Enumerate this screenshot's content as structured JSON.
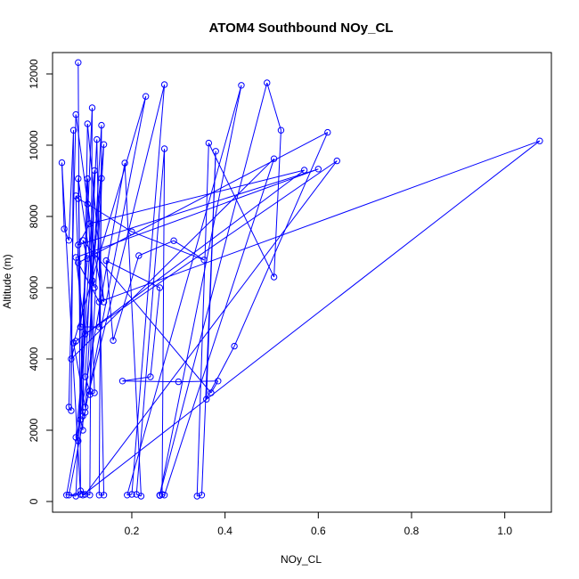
{
  "chart_data": {
    "type": "scatter",
    "title": "ATOM4 Southbound NOy_CL",
    "xlabel": "NOy_CL",
    "ylabel": "Altitude (m)",
    "xlim": [
      0.03,
      1.1
    ],
    "ylim": [
      -300,
      12600
    ],
    "xticks": [
      0.2,
      0.4,
      0.6,
      0.8,
      1.0
    ],
    "xtick_labels": [
      "0.2",
      "0.4",
      "0.6",
      "0.8",
      "1.0"
    ],
    "yticks": [
      0,
      2000,
      4000,
      6000,
      8000,
      10000,
      12000
    ],
    "ytick_labels": [
      "0",
      "2000",
      "4000",
      "6000",
      "8000",
      "10000",
      "12000"
    ],
    "grid": false,
    "legend": "none",
    "color": "#0000ff",
    "series": [
      {
        "style": "points-and-lines",
        "points": [
          [
            0.085,
            12320
          ],
          [
            0.09,
            300
          ],
          [
            0.11,
            180
          ],
          [
            0.115,
            11050
          ],
          [
            0.08,
            150
          ],
          [
            0.065,
            180
          ],
          [
            0.23,
            11370
          ],
          [
            0.075,
            4450
          ],
          [
            0.1,
            2650
          ],
          [
            0.27,
            11700
          ],
          [
            0.2,
            200
          ],
          [
            0.19,
            180
          ],
          [
            0.435,
            11680
          ],
          [
            0.26,
            170
          ],
          [
            0.26,
            180
          ],
          [
            0.49,
            11750
          ],
          [
            0.52,
            10420
          ],
          [
            0.505,
            6300
          ],
          [
            0.365,
            10060
          ],
          [
            0.34,
            150
          ],
          [
            0.35,
            180
          ],
          [
            0.38,
            9830
          ],
          [
            0.36,
            2870
          ],
          [
            0.42,
            4360
          ],
          [
            0.62,
            10360
          ],
          [
            0.085,
            6700
          ],
          [
            0.13,
            5600
          ],
          [
            1.075,
            10120
          ],
          [
            0.095,
            180
          ],
          [
            0.1,
            200
          ],
          [
            0.64,
            9560
          ],
          [
            0.1,
            4700
          ],
          [
            0.08,
            6850
          ],
          [
            0.6,
            9330
          ],
          [
            0.085,
            7200
          ],
          [
            0.11,
            7800
          ],
          [
            0.57,
            9300
          ],
          [
            0.08,
            4500
          ],
          [
            0.07,
            4000
          ],
          [
            0.505,
            9620
          ],
          [
            0.27,
            180
          ],
          [
            0.265,
            200
          ],
          [
            0.27,
            9900
          ],
          [
            0.21,
            200
          ],
          [
            0.22,
            150
          ],
          [
            0.185,
            9500
          ],
          [
            0.06,
            180
          ],
          [
            0.09,
            200
          ],
          [
            0.05,
            9510
          ],
          [
            0.055,
            7650
          ],
          [
            0.065,
            7330
          ],
          [
            0.075,
            10420
          ],
          [
            0.07,
            2550
          ],
          [
            0.065,
            2650
          ],
          [
            0.08,
            10860
          ],
          [
            0.12,
            6930
          ],
          [
            0.14,
            5600
          ],
          [
            0.105,
            10600
          ],
          [
            0.095,
            2400
          ],
          [
            0.1,
            2500
          ],
          [
            0.135,
            10560
          ],
          [
            0.13,
            180
          ],
          [
            0.14,
            180
          ],
          [
            0.125,
            10160
          ],
          [
            0.1,
            3500
          ],
          [
            0.11,
            3100
          ],
          [
            0.14,
            10020
          ],
          [
            0.08,
            1800
          ],
          [
            0.085,
            1700
          ],
          [
            0.12,
            9290
          ],
          [
            0.11,
            3000
          ],
          [
            0.12,
            3050
          ],
          [
            0.105,
            9060
          ],
          [
            0.09,
            2300
          ],
          [
            0.095,
            2000
          ],
          [
            0.085,
            9060
          ],
          [
            0.12,
            6000
          ],
          [
            0.115,
            6200
          ],
          [
            0.135,
            9070
          ],
          [
            0.13,
            4900
          ],
          [
            0.09,
            4900
          ],
          [
            0.08,
            8580
          ],
          [
            0.085,
            8500
          ],
          [
            0.105,
            8350
          ],
          [
            0.2,
            7570
          ],
          [
            0.355,
            6780
          ],
          [
            0.29,
            7320
          ],
          [
            0.215,
            6900
          ],
          [
            0.16,
            4520
          ],
          [
            0.145,
            6760
          ],
          [
            0.26,
            6000
          ],
          [
            0.24,
            3500
          ],
          [
            0.18,
            3380
          ],
          [
            0.3,
            3360
          ],
          [
            0.385,
            3380
          ],
          [
            0.37,
            3050
          ],
          [
            0.095,
            7330
          ],
          [
            0.105,
            6820
          ],
          [
            0.09,
            4900
          ]
        ]
      }
    ]
  }
}
